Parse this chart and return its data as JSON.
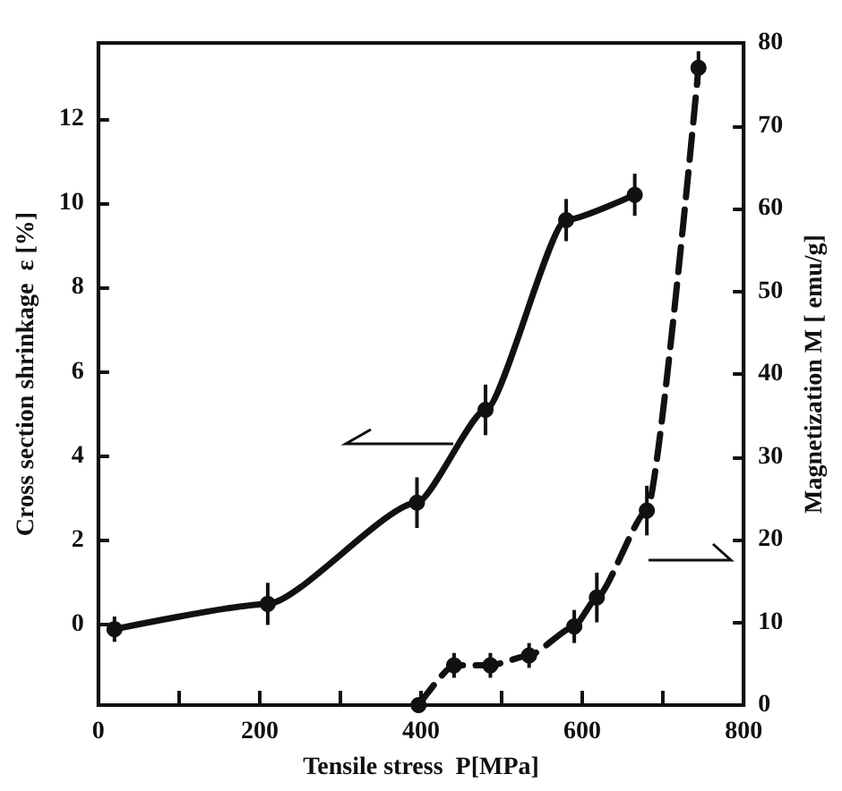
{
  "chart_data": {
    "type": "line",
    "xlabel": "Tensile stress  P[MPa]",
    "ylabel": "Cross section shrinkage  ε [%]",
    "y2label": "Magnetization M [ emu/g]",
    "xlim": [
      0,
      800
    ],
    "xticks": [
      0,
      {
        "value": 100,
        "label": null
      },
      200,
      {
        "value": 300,
        "label": null
      },
      400,
      {
        "value": 500,
        "label": null
      },
      600,
      {
        "value": 700,
        "label": null
      },
      800
    ],
    "ylim": [
      -1.9,
      13.8
    ],
    "yticks": [
      0,
      2,
      4,
      6,
      8,
      10,
      12
    ],
    "y2lim": [
      0,
      80
    ],
    "y2ticks": [
      0,
      10,
      20,
      30,
      40,
      50,
      60,
      70,
      80
    ],
    "grid": false,
    "marker": "circle",
    "series": [
      {
        "color": "#111111",
        "line_style": "solid",
        "x": [
          20,
          210,
          395,
          480,
          580,
          665
        ],
        "values": [
          -0.1,
          0.5,
          2.9,
          5.1,
          9.6,
          10.2
        ],
        "errors": [
          0.3,
          0.5,
          0.6,
          0.6,
          0.5,
          0.5
        ]
      },
      {
        "color": "#111111",
        "line_style": "dashed",
        "axis": "y2",
        "x": [
          397,
          441,
          486,
          534,
          590,
          618,
          680,
          744
        ],
        "values": [
          0,
          4.8,
          4.8,
          6,
          9.5,
          13,
          23.5,
          77
        ],
        "errors": [
          null,
          1.5,
          1.5,
          1.5,
          2,
          3,
          3,
          2
        ]
      }
    ]
  }
}
